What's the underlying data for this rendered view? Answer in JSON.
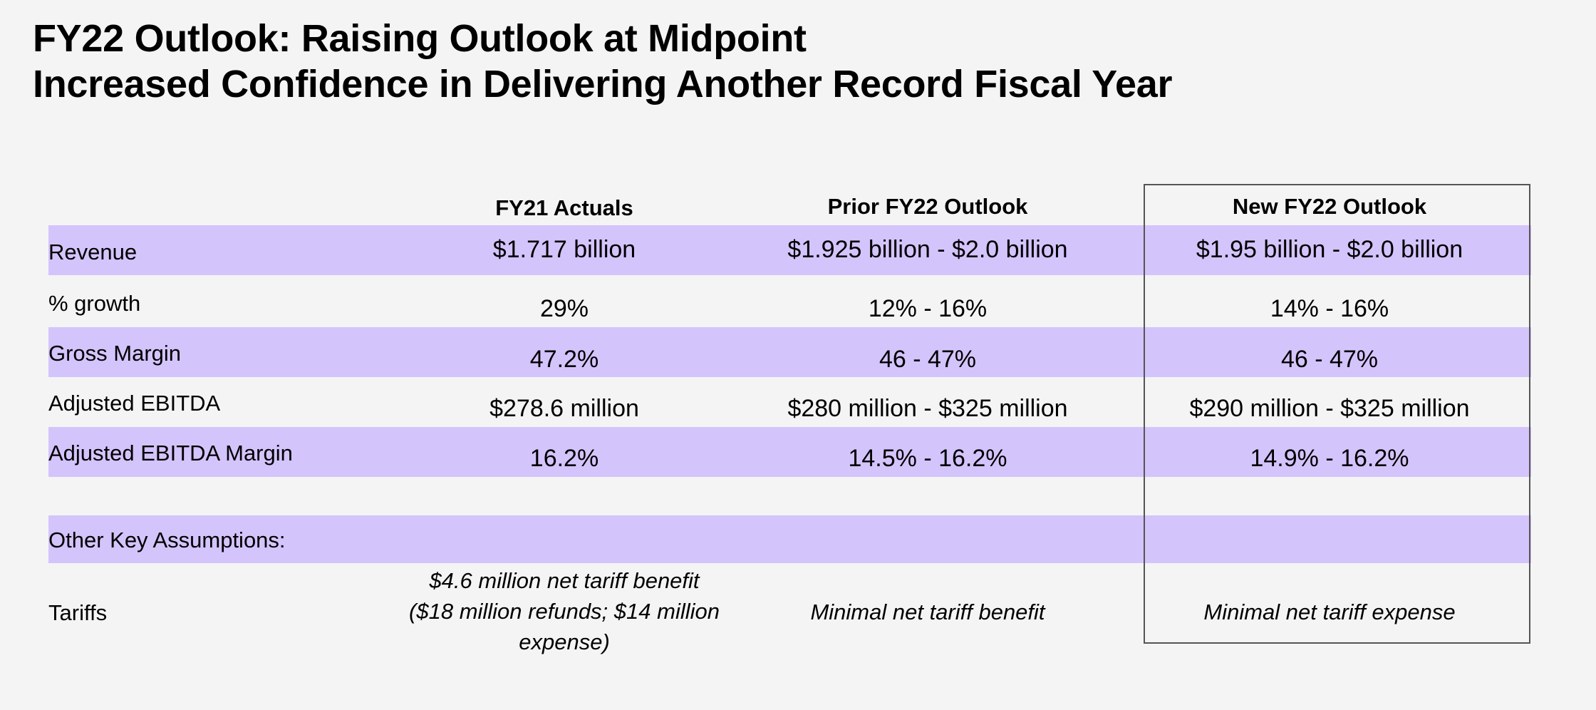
{
  "title": {
    "line1": "FY22 Outlook: Raising Outlook at Midpoint",
    "line2": "Increased Confidence in Delivering Another Record Fiscal Year"
  },
  "columns": {
    "fy21": "FY21 Actuals",
    "prior": "Prior FY22 Outlook",
    "new": "New FY22 Outlook"
  },
  "rows": [
    {
      "label": "Revenue",
      "fy21": "$1.717 billion",
      "prior": "$1.925 billion - $2.0 billion",
      "new": "$1.95 billion - $2.0 billion"
    },
    {
      "label": "% growth",
      "fy21": "29%",
      "prior": "12% - 16%",
      "new": "14% - 16%"
    },
    {
      "label": "Gross Margin",
      "fy21": "47.2%",
      "prior": "46 - 47%",
      "new": "46 - 47%"
    },
    {
      "label": "Adjusted EBITDA",
      "fy21": "$278.6 million",
      "prior": "$280 million - $325 million",
      "new": "$290 million - $325 million"
    },
    {
      "label": "Adjusted EBITDA Margin",
      "fy21": "16.2%",
      "prior": "14.5% - 16.2%",
      "new": "14.9% - 16.2%"
    }
  ],
  "assumptions": {
    "heading": "Other Key Assumptions:",
    "tariffs": {
      "label": "Tariffs",
      "fy21_line1": "$4.6 million net tariff benefit",
      "fy21_line2": "($18 million refunds; $14 million",
      "fy21_line3": "expense)",
      "prior": "Minimal net tariff benefit",
      "new": "Minimal net tariff expense"
    }
  },
  "colors": {
    "band": "#d4c4fc",
    "background": "#f4f4f4",
    "box_border": "#555555"
  }
}
